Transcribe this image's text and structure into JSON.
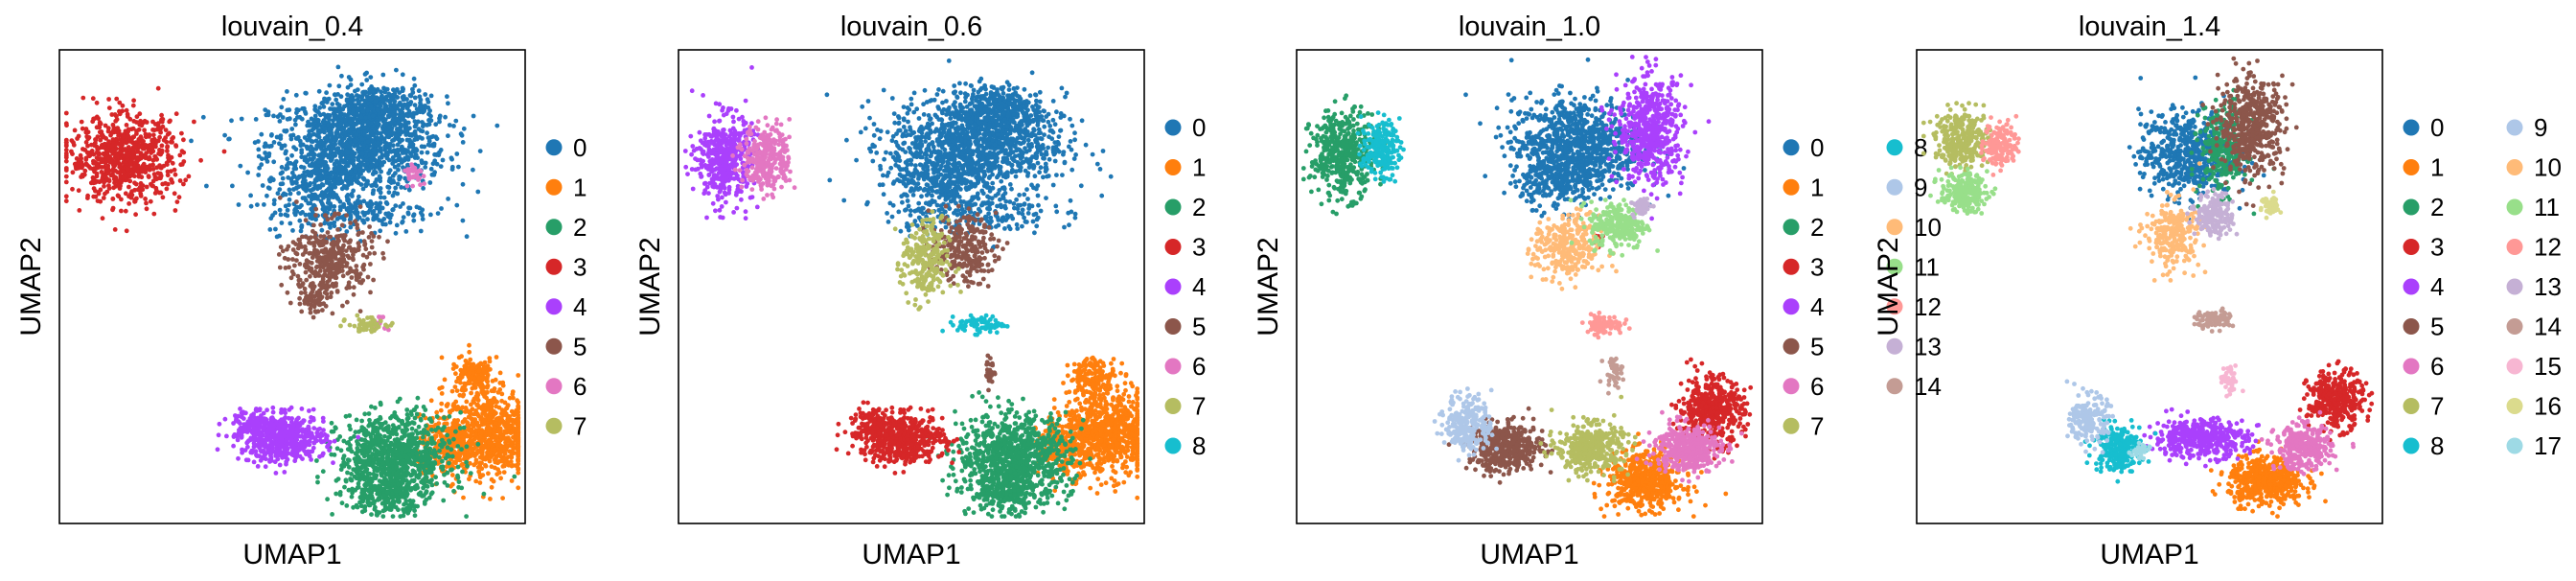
{
  "palette": [
    "#1f77b4",
    "#ff7f0e",
    "#279e68",
    "#d62728",
    "#aa40fc",
    "#8c564b",
    "#e377c2",
    "#b5bd61",
    "#17becf",
    "#aec7e8",
    "#ffbb78",
    "#98df8a",
    "#ff9896",
    "#c5b0d5",
    "#c49c94",
    "#f7b6d2",
    "#dbdb8d",
    "#9edae5"
  ],
  "chart_data": [
    {
      "type": "scatter",
      "title": "louvain_0.4",
      "xlabel": "UMAP1",
      "ylabel": "UMAP2",
      "ticks": "none",
      "legend_placement": "right",
      "categories": [
        "0",
        "1",
        "2",
        "3",
        "4",
        "5",
        "6",
        "7"
      ],
      "groups": [
        {
          "name": "0",
          "clusters": [
            [
              0.64,
              0.8,
              0.19,
              0.1,
              1100
            ],
            [
              0.68,
              0.87,
              0.1,
              0.06,
              350
            ],
            [
              0.56,
              0.73,
              0.09,
              0.05,
              200
            ],
            [
              0.62,
              0.66,
              0.18,
              0.05,
              250
            ]
          ]
        },
        {
          "name": "1",
          "clusters": [
            [
              0.92,
              0.19,
              0.1,
              0.09,
              750
            ],
            [
              0.83,
              0.16,
              0.06,
              0.06,
              200
            ],
            [
              0.89,
              0.31,
              0.05,
              0.04,
              150
            ]
          ]
        },
        {
          "name": "2",
          "clusters": [
            [
              0.72,
              0.14,
              0.12,
              0.09,
              900
            ],
            [
              0.7,
              0.06,
              0.08,
              0.04,
              200
            ]
          ]
        },
        {
          "name": "3",
          "clusters": [
            [
              0.14,
              0.77,
              0.12,
              0.09,
              750
            ]
          ]
        },
        {
          "name": "4",
          "clusters": [
            [
              0.48,
              0.18,
              0.09,
              0.05,
              550
            ],
            [
              0.41,
              0.21,
              0.04,
              0.04,
              100
            ]
          ]
        },
        {
          "name": "5",
          "clusters": [
            [
              0.58,
              0.56,
              0.09,
              0.08,
              350
            ],
            [
              0.55,
              0.48,
              0.04,
              0.04,
              80
            ]
          ]
        },
        {
          "name": "6",
          "clusters": [
            [
              0.76,
              0.74,
              0.02,
              0.02,
              40
            ],
            [
              0.68,
              0.42,
              0.01,
              0.01,
              8
            ],
            [
              0.69,
              0.43,
              0.01,
              0.01,
              6
            ],
            [
              0.7,
              0.41,
              0.01,
              0.01,
              6
            ]
          ]
        },
        {
          "name": "7",
          "clusters": [
            [
              0.66,
              0.42,
              0.04,
              0.015,
              60
            ]
          ]
        }
      ]
    },
    {
      "type": "scatter",
      "title": "louvain_0.6",
      "xlabel": "UMAP1",
      "ylabel": "UMAP2",
      "ticks": "none",
      "legend_placement": "right",
      "categories": [
        "0",
        "1",
        "2",
        "3",
        "4",
        "5",
        "6",
        "7",
        "8"
      ],
      "groups": [
        {
          "name": "0",
          "clusters": [
            [
              0.64,
              0.8,
              0.19,
              0.1,
              1100
            ],
            [
              0.68,
              0.87,
              0.1,
              0.06,
              350
            ],
            [
              0.56,
              0.73,
              0.09,
              0.05,
              200
            ],
            [
              0.62,
              0.66,
              0.18,
              0.05,
              250
            ]
          ]
        },
        {
          "name": "1",
          "clusters": [
            [
              0.92,
              0.19,
              0.1,
              0.09,
              750
            ],
            [
              0.83,
              0.16,
              0.06,
              0.06,
              200
            ],
            [
              0.89,
              0.31,
              0.05,
              0.04,
              150
            ]
          ]
        },
        {
          "name": "2",
          "clusters": [
            [
              0.72,
              0.14,
              0.12,
              0.09,
              900
            ],
            [
              0.7,
              0.06,
              0.08,
              0.04,
              200
            ]
          ]
        },
        {
          "name": "3",
          "clusters": [
            [
              0.48,
              0.18,
              0.09,
              0.05,
              550
            ],
            [
              0.41,
              0.21,
              0.04,
              0.04,
              100
            ]
          ]
        },
        {
          "name": "4",
          "clusters": [
            [
              0.1,
              0.77,
              0.06,
              0.09,
              450
            ]
          ]
        },
        {
          "name": "5",
          "clusters": [
            [
              0.61,
              0.58,
              0.07,
              0.07,
              250
            ],
            [
              0.67,
              0.32,
              0.01,
              0.03,
              30
            ]
          ]
        },
        {
          "name": "6",
          "clusters": [
            [
              0.19,
              0.77,
              0.05,
              0.07,
              300
            ]
          ]
        },
        {
          "name": "7",
          "clusters": [
            [
              0.53,
              0.55,
              0.05,
              0.09,
              250
            ]
          ]
        },
        {
          "name": "8",
          "clusters": [
            [
              0.65,
              0.42,
              0.05,
              0.018,
              80
            ]
          ]
        }
      ]
    },
    {
      "type": "scatter",
      "title": "louvain_1.0",
      "xlabel": "UMAP1",
      "ylabel": "UMAP2",
      "ticks": "none",
      "legend_placement": "right",
      "categories": [
        "0",
        "1",
        "2",
        "3",
        "4",
        "5",
        "6",
        "7",
        "8",
        "9",
        "10",
        "11",
        "12",
        "13",
        "14"
      ],
      "groups": [
        {
          "name": "0",
          "clusters": [
            [
              0.6,
              0.8,
              0.14,
              0.1,
              900
            ],
            [
              0.56,
              0.72,
              0.08,
              0.05,
              200
            ]
          ]
        },
        {
          "name": "1",
          "clusters": [
            [
              0.75,
              0.09,
              0.08,
              0.06,
              550
            ]
          ]
        },
        {
          "name": "2",
          "clusters": [
            [
              0.1,
              0.78,
              0.07,
              0.09,
              450
            ]
          ]
        },
        {
          "name": "3",
          "clusters": [
            [
              0.89,
              0.24,
              0.07,
              0.07,
              450
            ],
            [
              0.65,
              0.6,
              0.01,
              0.01,
              10
            ]
          ]
        },
        {
          "name": "4",
          "clusters": [
            [
              0.76,
              0.83,
              0.07,
              0.11,
              550
            ]
          ]
        },
        {
          "name": "5",
          "clusters": [
            [
              0.45,
              0.16,
              0.08,
              0.05,
              450
            ]
          ]
        },
        {
          "name": "6",
          "clusters": [
            [
              0.84,
              0.16,
              0.07,
              0.05,
              400
            ]
          ]
        },
        {
          "name": "7",
          "clusters": [
            [
              0.63,
              0.16,
              0.07,
              0.05,
              400
            ]
          ]
        },
        {
          "name": "8",
          "clusters": [
            [
              0.18,
              0.79,
              0.04,
              0.06,
              200
            ]
          ]
        },
        {
          "name": "9",
          "clusters": [
            [
              0.37,
              0.21,
              0.05,
              0.06,
              250
            ]
          ]
        },
        {
          "name": "10",
          "clusters": [
            [
              0.58,
              0.58,
              0.07,
              0.07,
              300
            ]
          ]
        },
        {
          "name": "11",
          "clusters": [
            [
              0.69,
              0.63,
              0.06,
              0.05,
              250
            ]
          ]
        },
        {
          "name": "12",
          "clusters": [
            [
              0.66,
              0.42,
              0.04,
              0.02,
              90
            ]
          ]
        },
        {
          "name": "13",
          "clusters": [
            [
              0.74,
              0.67,
              0.02,
              0.02,
              50
            ]
          ]
        },
        {
          "name": "14",
          "clusters": [
            [
              0.68,
              0.32,
              0.02,
              0.03,
              40
            ]
          ]
        }
      ]
    },
    {
      "type": "scatter",
      "title": "louvain_1.4",
      "xlabel": "UMAP1",
      "ylabel": "UMAP2",
      "ticks": "none",
      "legend_placement": "right",
      "categories": [
        "0",
        "1",
        "2",
        "3",
        "4",
        "5",
        "6",
        "7",
        "8",
        "9",
        "10",
        "11",
        "12",
        "13",
        "14",
        "15",
        "16",
        "17"
      ],
      "groups": [
        {
          "name": "0",
          "clusters": [
            [
              0.58,
              0.78,
              0.1,
              0.09,
              550
            ]
          ]
        },
        {
          "name": "1",
          "clusters": [
            [
              0.75,
              0.09,
              0.08,
              0.05,
              500
            ]
          ]
        },
        {
          "name": "2",
          "clusters": [
            [
              0.66,
              0.79,
              0.05,
              0.09,
              300
            ]
          ]
        },
        {
          "name": "3",
          "clusters": [
            [
              0.9,
              0.26,
              0.06,
              0.06,
              350
            ]
          ]
        },
        {
          "name": "4",
          "clusters": [
            [
              0.61,
              0.18,
              0.1,
              0.04,
              450
            ]
          ]
        },
        {
          "name": "5",
          "clusters": [
            [
              0.72,
              0.84,
              0.07,
              0.1,
              500
            ]
          ]
        },
        {
          "name": "6",
          "clusters": [
            [
              0.83,
              0.16,
              0.06,
              0.045,
              350
            ]
          ]
        },
        {
          "name": "7",
          "clusters": [
            [
              0.1,
              0.81,
              0.06,
              0.06,
              300
            ]
          ]
        },
        {
          "name": "8",
          "clusters": [
            [
              0.43,
              0.16,
              0.05,
              0.05,
              250
            ]
          ]
        },
        {
          "name": "9",
          "clusters": [
            [
              0.37,
              0.22,
              0.04,
              0.05,
              180
            ]
          ]
        },
        {
          "name": "10",
          "clusters": [
            [
              0.55,
              0.61,
              0.06,
              0.07,
              250
            ]
          ]
        },
        {
          "name": "11",
          "clusters": [
            [
              0.1,
              0.7,
              0.05,
              0.04,
              220
            ]
          ]
        },
        {
          "name": "12",
          "clusters": [
            [
              0.18,
              0.8,
              0.035,
              0.05,
              150
            ]
          ]
        },
        {
          "name": "13",
          "clusters": [
            [
              0.64,
              0.65,
              0.04,
              0.045,
              180
            ]
          ]
        },
        {
          "name": "14",
          "clusters": [
            [
              0.64,
              0.43,
              0.04,
              0.02,
              80
            ]
          ]
        },
        {
          "name": "15",
          "clusters": [
            [
              0.67,
              0.3,
              0.02,
              0.03,
              40
            ]
          ]
        },
        {
          "name": "16",
          "clusters": [
            [
              0.76,
              0.67,
              0.02,
              0.025,
              50
            ]
          ]
        },
        {
          "name": "17",
          "clusters": [
            [
              0.48,
              0.15,
              0.02,
              0.02,
              30
            ]
          ]
        }
      ]
    }
  ]
}
